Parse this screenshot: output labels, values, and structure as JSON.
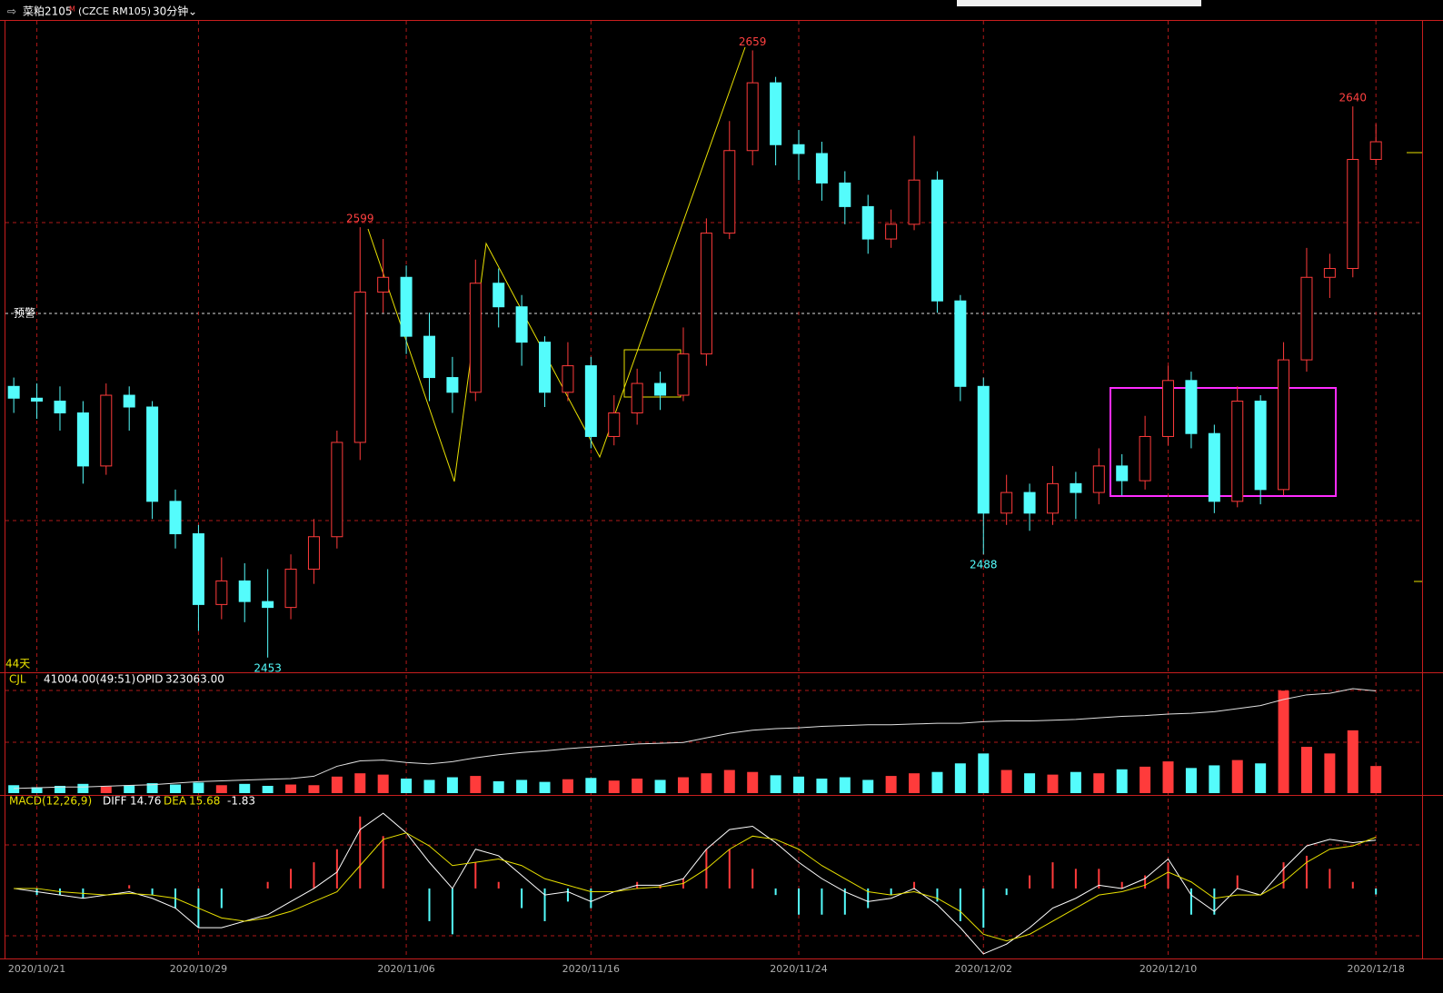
{
  "header": {
    "symbol": "菜粕2105",
    "flag": "M",
    "code": "(CZCE RM105)",
    "period": "30分钟",
    "alert": "预警",
    "days": "44天"
  },
  "chart_data": [
    {
      "type": "candlestick",
      "up_color": "#ff3b3b",
      "down_color": "#54fcfc",
      "xlim": [
        -0.4,
        61
      ],
      "ylim": [
        2448,
        2669
      ],
      "xticks": [
        {
          "value": 1,
          "label": "2020/10/21"
        },
        {
          "value": 8,
          "label": "2020/10/29"
        },
        {
          "value": 17,
          "label": "2020/11/06"
        },
        {
          "value": 25,
          "label": "2020/11/16"
        },
        {
          "value": 34,
          "label": "2020/11/24"
        },
        {
          "value": 42,
          "label": "2020/12/02"
        },
        {
          "value": 50,
          "label": "2020/12/10"
        },
        {
          "value": 59,
          "label": "2020/12/18"
        }
      ],
      "open": [
        2545,
        2541,
        2540,
        2536,
        2518,
        2542,
        2538,
        2506,
        2495,
        2471,
        2479,
        2472,
        2470,
        2483,
        2494,
        2526,
        2577,
        2582,
        2562,
        2548,
        2543,
        2580,
        2572,
        2560,
        2543,
        2552,
        2528,
        2536,
        2546,
        2542,
        2556,
        2597,
        2625,
        2648,
        2627,
        2624,
        2614,
        2606,
        2595,
        2600,
        2615,
        2574,
        2545,
        2502,
        2509,
        2502,
        2512,
        2509,
        2518,
        2513,
        2528,
        2547,
        2529,
        2506,
        2540,
        2510,
        2554,
        2582,
        2585,
        2622
      ],
      "high": [
        2548,
        2546,
        2545,
        2540,
        2546,
        2545,
        2540,
        2510,
        2498,
        2487,
        2485,
        2483,
        2488,
        2500,
        2530,
        2599,
        2595,
        2586,
        2570,
        2555,
        2588,
        2585,
        2576,
        2562,
        2560,
        2555,
        2542,
        2551,
        2550,
        2565,
        2602,
        2635,
        2659,
        2650,
        2632,
        2628,
        2618,
        2610,
        2605,
        2630,
        2618,
        2576,
        2548,
        2515,
        2512,
        2518,
        2516,
        2524,
        2522,
        2535,
        2552,
        2550,
        2532,
        2545,
        2542,
        2560,
        2592,
        2590,
        2640,
        2634
      ],
      "low": [
        2536,
        2534,
        2530,
        2512,
        2515,
        2530,
        2500,
        2490,
        2462,
        2466,
        2465,
        2453,
        2466,
        2478,
        2490,
        2520,
        2570,
        2556,
        2540,
        2536,
        2540,
        2565,
        2552,
        2538,
        2540,
        2524,
        2525,
        2532,
        2537,
        2540,
        2552,
        2595,
        2620,
        2620,
        2615,
        2608,
        2600,
        2590,
        2592,
        2598,
        2570,
        2540,
        2488,
        2498,
        2496,
        2498,
        2500,
        2505,
        2508,
        2510,
        2525,
        2524,
        2502,
        2504,
        2505,
        2508,
        2550,
        2575,
        2582,
        2620
      ],
      "close": [
        2541,
        2540,
        2536,
        2518,
        2542,
        2538,
        2506,
        2495,
        2471,
        2479,
        2472,
        2470,
        2483,
        2494,
        2526,
        2577,
        2582,
        2562,
        2548,
        2543,
        2580,
        2572,
        2560,
        2543,
        2552,
        2528,
        2536,
        2546,
        2542,
        2556,
        2597,
        2625,
        2648,
        2627,
        2624,
        2614,
        2606,
        2595,
        2600,
        2615,
        2574,
        2545,
        2502,
        2509,
        2502,
        2512,
        2509,
        2518,
        2513,
        2528,
        2547,
        2529,
        2506,
        2540,
        2510,
        2554,
        2582,
        2585,
        2622,
        2628
      ]
    },
    {
      "type": "volume",
      "ylim": [
        0,
        180000
      ],
      "y2lim": [
        190000,
        345000
      ],
      "series": [
        {
          "name": "CJL",
          "last_label": "41004.00(49:51)",
          "values": [
            12000,
            9000,
            11000,
            14000,
            10000,
            12000,
            15000,
            13000,
            16000,
            12000,
            14000,
            11000,
            13000,
            12000,
            25000,
            30000,
            28000,
            22000,
            20000,
            24000,
            26000,
            18000,
            20000,
            17000,
            21000,
            23000,
            19000,
            22000,
            20000,
            24000,
            30000,
            35000,
            32000,
            27000,
            25000,
            22000,
            24000,
            20000,
            26000,
            30000,
            32000,
            45000,
            60000,
            35000,
            30000,
            28000,
            32000,
            30000,
            36000,
            40000,
            48000,
            38000,
            42000,
            50000,
            45000,
            155000,
            70000,
            60000,
            95000,
            41004
          ]
        },
        {
          "name": "OPID",
          "axis": "y2",
          "color": "#e0e0e0",
          "last_label": "323063.00",
          "values": [
            196000,
            197000,
            198000,
            198000,
            199000,
            200000,
            201000,
            203000,
            205000,
            206000,
            207000,
            208000,
            209000,
            212000,
            225000,
            232000,
            233000,
            230000,
            228000,
            231000,
            236000,
            240000,
            243000,
            245000,
            248000,
            250000,
            252000,
            254000,
            255000,
            256000,
            262000,
            268000,
            272000,
            274000,
            275000,
            277000,
            278000,
            279000,
            279000,
            280000,
            281000,
            281000,
            283000,
            284000,
            284000,
            285000,
            286000,
            288000,
            290000,
            291000,
            293000,
            294000,
            296000,
            300000,
            304000,
            312000,
            318000,
            320000,
            326000,
            323063
          ]
        }
      ]
    },
    {
      "type": "macd",
      "title": "MACD(12,26,9)",
      "ylim": [
        -21.4,
        27.2
      ],
      "series": [
        {
          "name": "DIFF",
          "color": "#ffffff",
          "values": [
            0,
            -1,
            -2,
            -3,
            -2,
            -1,
            -3,
            -6,
            -12,
            -12,
            -10,
            -8,
            -4,
            0,
            5,
            18,
            23,
            17,
            8,
            0,
            12,
            10,
            4,
            -2,
            -1,
            -4,
            -1,
            1,
            1,
            3,
            12,
            18,
            19,
            14,
            8,
            3,
            -1,
            -4,
            -3,
            0,
            -5,
            -12,
            -20,
            -17,
            -12,
            -6,
            -3,
            1,
            0,
            3,
            9,
            -2,
            -7,
            0,
            -2,
            6,
            13,
            15,
            14,
            14.76
          ]
        },
        {
          "name": "DEA",
          "color": "#e8e000",
          "values": [
            0,
            0,
            -1,
            -1.5,
            -2,
            -1.5,
            -2,
            -3,
            -6,
            -9,
            -10,
            -9,
            -7,
            -4,
            -1,
            7,
            15,
            17,
            13,
            7,
            8,
            9,
            7,
            3,
            1,
            -1,
            -1,
            0,
            0.5,
            1.5,
            6,
            12,
            16,
            15,
            12,
            7,
            3,
            -1,
            -2,
            -1,
            -3,
            -7,
            -14,
            -16,
            -14,
            -10,
            -6,
            -2,
            -1,
            1,
            5,
            2,
            -3,
            -2,
            -2,
            2,
            8,
            12,
            13,
            15.68
          ]
        },
        {
          "name": "MACD",
          "values": [
            0,
            -2,
            -2,
            -3,
            0,
            1,
            -2,
            -6,
            -12,
            -6,
            0,
            2,
            6,
            8,
            12,
            22,
            16,
            0,
            -10,
            -14,
            8,
            2,
            -6,
            -10,
            -4,
            -6,
            0,
            2,
            1,
            3,
            12,
            12,
            6,
            -2,
            -8,
            -8,
            -8,
            -6,
            -2,
            2,
            -4,
            -10,
            -12,
            -2,
            4,
            8,
            6,
            6,
            2,
            4,
            8,
            -8,
            -8,
            4,
            0,
            8,
            10,
            6,
            2,
            -1.83
          ]
        }
      ]
    }
  ]
}
